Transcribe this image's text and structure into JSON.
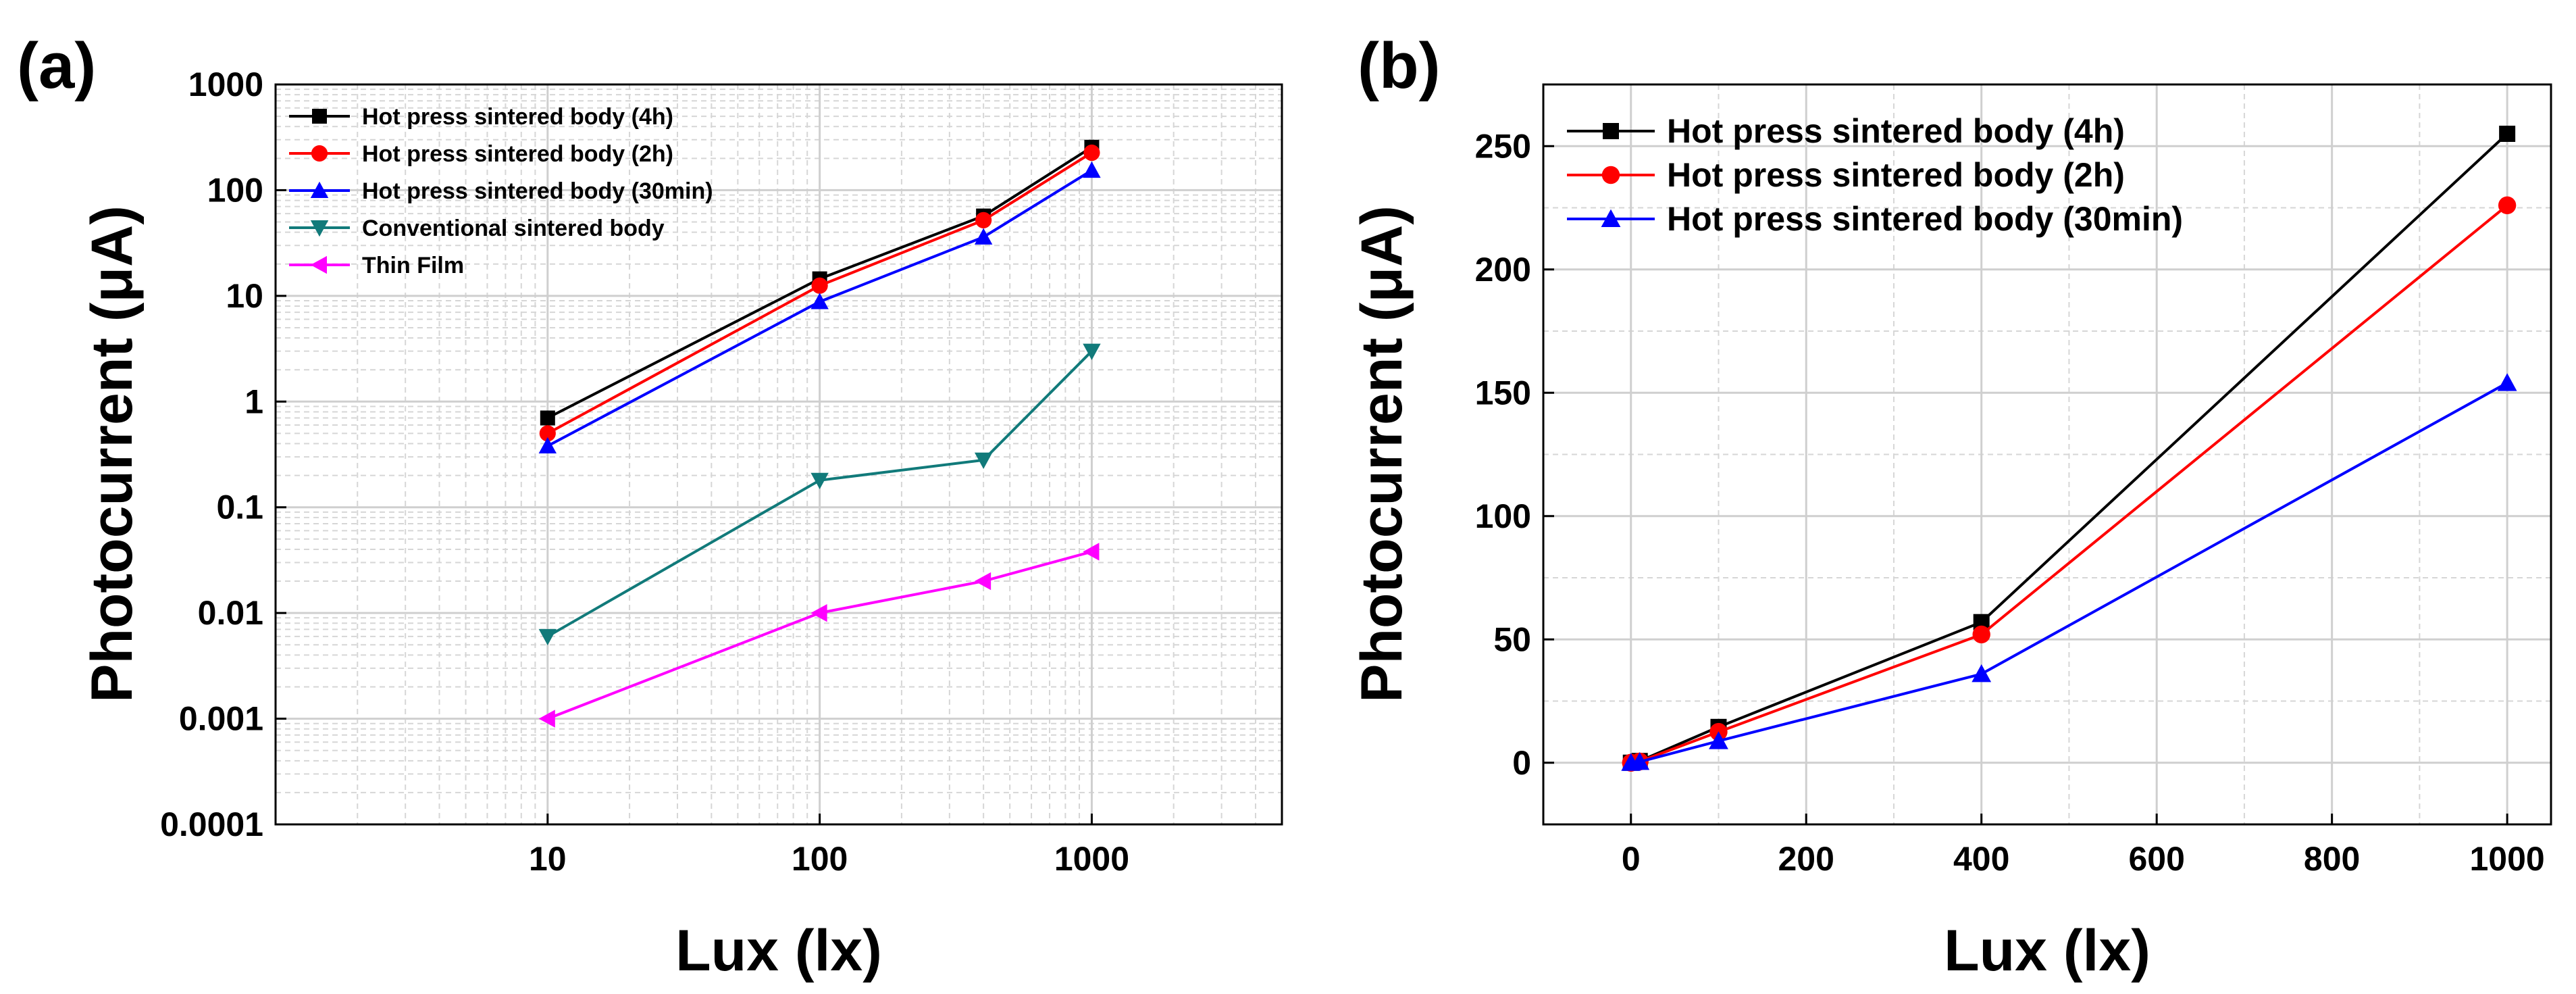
{
  "chart_data": [
    {
      "panel": "(a)",
      "type": "line",
      "xscale": "log",
      "yscale": "log",
      "xlabel": "Lux (lx)",
      "ylabel": "Photocurrent (μA)",
      "xlim": [
        1,
        5000
      ],
      "ylim": [
        0.0001,
        1000
      ],
      "xticks": [
        10,
        100,
        1000
      ],
      "xtick_labels": [
        "10",
        "100",
        "1000"
      ],
      "yticks": [
        0.0001,
        0.001,
        0.01,
        0.1,
        1,
        10,
        100,
        1000
      ],
      "ytick_labels": [
        "0.0001",
        "0.001",
        "0.01",
        "0.1",
        "1",
        "10",
        "100",
        "1000"
      ],
      "grid": true,
      "legend_position": "top-left",
      "series": [
        {
          "name": "Hot press sintered body (4h)",
          "color": "#000000",
          "marker": "square",
          "x": [
            10,
            100,
            400,
            1000
          ],
          "y": [
            0.7,
            14.5,
            57,
            255
          ]
        },
        {
          "name": "Hot press sintered body (2h)",
          "color": "#ff0000",
          "marker": "circle",
          "x": [
            10,
            100,
            400,
            1000
          ],
          "y": [
            0.5,
            12.5,
            52,
            226
          ]
        },
        {
          "name": "Hot press sintered body (30min)",
          "color": "#0000ff",
          "marker": "triangle-up",
          "x": [
            10,
            100,
            400,
            1000
          ],
          "y": [
            0.38,
            8.8,
            36,
            154
          ]
        },
        {
          "name": "Conventional sintered body",
          "color": "#117a7a",
          "marker": "triangle-down",
          "x": [
            10,
            100,
            400,
            1000
          ],
          "y": [
            0.006,
            0.18,
            0.28,
            3.0
          ]
        },
        {
          "name": "Thin Film",
          "color": "#ff00ff",
          "marker": "triangle-left",
          "x": [
            10,
            100,
            400,
            1000
          ],
          "y": [
            0.001,
            0.01,
            0.02,
            0.038
          ]
        }
      ]
    },
    {
      "panel": "(b)",
      "type": "line",
      "xscale": "linear",
      "yscale": "linear",
      "xlabel": "Lux (lx)",
      "ylabel": "Photocurrent (μA)",
      "xlim": [
        -100,
        1050
      ],
      "ylim": [
        -25,
        275
      ],
      "xticks": [
        0,
        200,
        400,
        600,
        800,
        1000
      ],
      "xtick_labels": [
        "0",
        "200",
        "400",
        "600",
        "800",
        "1000"
      ],
      "yticks": [
        0,
        50,
        100,
        150,
        200,
        250
      ],
      "ytick_labels": [
        "0",
        "50",
        "100",
        "150",
        "200",
        "250"
      ],
      "grid": true,
      "legend_position": "top-left",
      "series": [
        {
          "name": "Hot press sintered body (4h)",
          "color": "#000000",
          "marker": "square",
          "x": [
            0,
            10,
            100,
            400,
            1000
          ],
          "y": [
            0,
            0.7,
            14.5,
            57,
            255
          ]
        },
        {
          "name": "Hot press sintered body (2h)",
          "color": "#ff0000",
          "marker": "circle",
          "x": [
            0,
            10,
            100,
            400,
            1000
          ],
          "y": [
            0,
            0.5,
            12.5,
            52,
            226
          ]
        },
        {
          "name": "Hot press sintered body (30min)",
          "color": "#0000ff",
          "marker": "triangle-up",
          "x": [
            0,
            10,
            100,
            400,
            1000
          ],
          "y": [
            0,
            0.38,
            8.8,
            36,
            154
          ]
        }
      ]
    }
  ]
}
